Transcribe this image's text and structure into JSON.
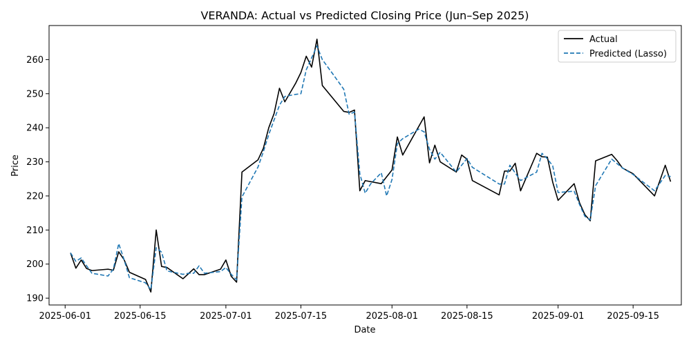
{
  "chart_data": {
    "type": "line",
    "title": "VERANDA: Actual vs Predicted Closing Price (Jun–Sep 2025)",
    "xlabel": "Date",
    "ylabel": "Price",
    "xlim": [
      "2025-05-29",
      "2025-09-24"
    ],
    "ylim": [
      188,
      270
    ],
    "x_ticks": [
      "2025-06-01",
      "2025-06-15",
      "2025-07-01",
      "2025-07-15",
      "2025-08-01",
      "2025-08-15",
      "2025-09-01",
      "2025-09-15"
    ],
    "y_ticks": [
      190,
      200,
      210,
      220,
      230,
      240,
      250,
      260
    ],
    "legend_position": "upper right",
    "grid": false,
    "series": [
      {
        "name": "Actual",
        "color": "#000000",
        "style": "solid",
        "points": [
          [
            "2025-06-02",
            203.3
          ],
          [
            "2025-06-03",
            198.8
          ],
          [
            "2025-06-04",
            201.2
          ],
          [
            "2025-06-05",
            198.7
          ],
          [
            "2025-06-06",
            198.1
          ],
          [
            "2025-06-09",
            198.5
          ],
          [
            "2025-06-10",
            198.2
          ],
          [
            "2025-06-11",
            203.6
          ],
          [
            "2025-06-12",
            201.3
          ],
          [
            "2025-06-13",
            197.6
          ],
          [
            "2025-06-16",
            195.5
          ],
          [
            "2025-06-17",
            191.8
          ],
          [
            "2025-06-18",
            210.0
          ],
          [
            "2025-06-19",
            199.3
          ],
          [
            "2025-06-20",
            199.0
          ],
          [
            "2025-06-23",
            195.7
          ],
          [
            "2025-06-25",
            198.6
          ],
          [
            "2025-06-26",
            196.9
          ],
          [
            "2025-06-27",
            196.9
          ],
          [
            "2025-06-30",
            198.5
          ],
          [
            "2025-07-01",
            201.2
          ],
          [
            "2025-07-02",
            196.4
          ],
          [
            "2025-07-03",
            194.7
          ],
          [
            "2025-07-04",
            227.0
          ],
          [
            "2025-07-07",
            230.6
          ],
          [
            "2025-07-08",
            234.0
          ],
          [
            "2025-07-09",
            240.0
          ],
          [
            "2025-07-10",
            244.2
          ],
          [
            "2025-07-11",
            251.6
          ],
          [
            "2025-07-12",
            247.6
          ],
          [
            "2025-07-14",
            253.0
          ],
          [
            "2025-07-15",
            256.2
          ],
          [
            "2025-07-16",
            261.0
          ],
          [
            "2025-07-17",
            257.8
          ],
          [
            "2025-07-18",
            266.0
          ],
          [
            "2025-07-19",
            252.4
          ],
          [
            "2025-07-23",
            244.8
          ],
          [
            "2025-07-24",
            244.5
          ],
          [
            "2025-07-25",
            245.2
          ],
          [
            "2025-07-26",
            221.5
          ],
          [
            "2025-07-27",
            224.5
          ],
          [
            "2025-07-30",
            223.6
          ],
          [
            "2025-07-31",
            225.6
          ],
          [
            "2025-08-01",
            227.6
          ],
          [
            "2025-08-02",
            237.3
          ],
          [
            "2025-08-03",
            232.0
          ],
          [
            "2025-08-07",
            243.2
          ],
          [
            "2025-08-08",
            229.7
          ],
          [
            "2025-08-09",
            234.9
          ],
          [
            "2025-08-10",
            230.0
          ],
          [
            "2025-08-13",
            227.0
          ],
          [
            "2025-08-14",
            232.0
          ],
          [
            "2025-08-15",
            230.8
          ],
          [
            "2025-08-16",
            224.5
          ],
          [
            "2025-08-21",
            220.3
          ],
          [
            "2025-08-22",
            227.3
          ],
          [
            "2025-08-23",
            227.3
          ],
          [
            "2025-08-24",
            229.6
          ],
          [
            "2025-08-25",
            221.5
          ],
          [
            "2025-08-28",
            232.5
          ],
          [
            "2025-08-29",
            231.5
          ],
          [
            "2025-08-30",
            231.4
          ],
          [
            "2025-08-31",
            224.0
          ],
          [
            "2025-09-01",
            218.7
          ],
          [
            "2025-09-04",
            223.6
          ],
          [
            "2025-09-05",
            218.0
          ],
          [
            "2025-09-06",
            214.5
          ],
          [
            "2025-09-07",
            212.7
          ],
          [
            "2025-09-08",
            230.3
          ],
          [
            "2025-09-11",
            232.2
          ],
          [
            "2025-09-12",
            230.4
          ],
          [
            "2025-09-13",
            228.2
          ],
          [
            "2025-09-15",
            226.5
          ],
          [
            "2025-09-19",
            220.0
          ],
          [
            "2025-09-21",
            229.0
          ],
          [
            "2025-09-22",
            224.2
          ]
        ]
      },
      {
        "name": "Predicted (Lasso)",
        "color": "#1f77b4",
        "style": "dashed",
        "points": [
          [
            "2025-06-02",
            203.3
          ],
          [
            "2025-06-03",
            200.8
          ],
          [
            "2025-06-04",
            201.8
          ],
          [
            "2025-06-05",
            199.5
          ],
          [
            "2025-06-06",
            197.3
          ],
          [
            "2025-06-09",
            196.5
          ],
          [
            "2025-06-10",
            198.5
          ],
          [
            "2025-06-11",
            206.0
          ],
          [
            "2025-06-12",
            201.3
          ],
          [
            "2025-06-13",
            196.0
          ],
          [
            "2025-06-16",
            194.5
          ],
          [
            "2025-06-17",
            192.5
          ],
          [
            "2025-06-18",
            204.8
          ],
          [
            "2025-06-19",
            203.5
          ],
          [
            "2025-06-20",
            198.0
          ],
          [
            "2025-06-23",
            197.0
          ],
          [
            "2025-06-24",
            197.3
          ],
          [
            "2025-06-25",
            197.3
          ],
          [
            "2025-06-26",
            199.5
          ],
          [
            "2025-06-27",
            197.3
          ],
          [
            "2025-06-30",
            197.8
          ],
          [
            "2025-07-01",
            199.0
          ],
          [
            "2025-07-02",
            197.0
          ],
          [
            "2025-07-03",
            195.4
          ],
          [
            "2025-07-04",
            219.7
          ],
          [
            "2025-07-07",
            228.5
          ],
          [
            "2025-07-08",
            233.0
          ],
          [
            "2025-07-09",
            238.0
          ],
          [
            "2025-07-11",
            246.6
          ],
          [
            "2025-07-12",
            249.2
          ],
          [
            "2025-07-14",
            249.8
          ],
          [
            "2025-07-15",
            250.0
          ],
          [
            "2025-07-16",
            257.0
          ],
          [
            "2025-07-18",
            264.0
          ],
          [
            "2025-07-19",
            260.0
          ],
          [
            "2025-07-21",
            255.7
          ],
          [
            "2025-07-23",
            251.3
          ],
          [
            "2025-07-24",
            244.0
          ],
          [
            "2025-07-25",
            244.6
          ],
          [
            "2025-07-26",
            226.5
          ],
          [
            "2025-07-27",
            220.8
          ],
          [
            "2025-07-28",
            223.5
          ],
          [
            "2025-07-30",
            226.8
          ],
          [
            "2025-07-31",
            220.0
          ],
          [
            "2025-08-01",
            224.8
          ],
          [
            "2025-08-02",
            235.3
          ],
          [
            "2025-08-03",
            236.8
          ],
          [
            "2025-08-06",
            239.6
          ],
          [
            "2025-08-07",
            238.8
          ],
          [
            "2025-08-08",
            233.7
          ],
          [
            "2025-08-09",
            230.8
          ],
          [
            "2025-08-10",
            232.8
          ],
          [
            "2025-08-13",
            227.0
          ],
          [
            "2025-08-15",
            231.0
          ],
          [
            "2025-08-16",
            228.4
          ],
          [
            "2025-08-21",
            223.5
          ],
          [
            "2025-08-22",
            223.5
          ],
          [
            "2025-08-23",
            229.0
          ],
          [
            "2025-08-25",
            224.5
          ],
          [
            "2025-08-28",
            227.0
          ],
          [
            "2025-08-29",
            232.5
          ],
          [
            "2025-08-30",
            230.9
          ],
          [
            "2025-08-31",
            228.8
          ],
          [
            "2025-09-01",
            221.0
          ],
          [
            "2025-09-04",
            221.4
          ],
          [
            "2025-09-05",
            217.5
          ],
          [
            "2025-09-06",
            214.0
          ],
          [
            "2025-09-07",
            213.0
          ],
          [
            "2025-09-08",
            223.0
          ],
          [
            "2025-09-11",
            230.8
          ],
          [
            "2025-09-13",
            228.2
          ],
          [
            "2025-09-15",
            226.3
          ],
          [
            "2025-09-19",
            221.5
          ],
          [
            "2025-09-21",
            226.0
          ],
          [
            "2025-09-22",
            225.7
          ]
        ]
      }
    ]
  }
}
